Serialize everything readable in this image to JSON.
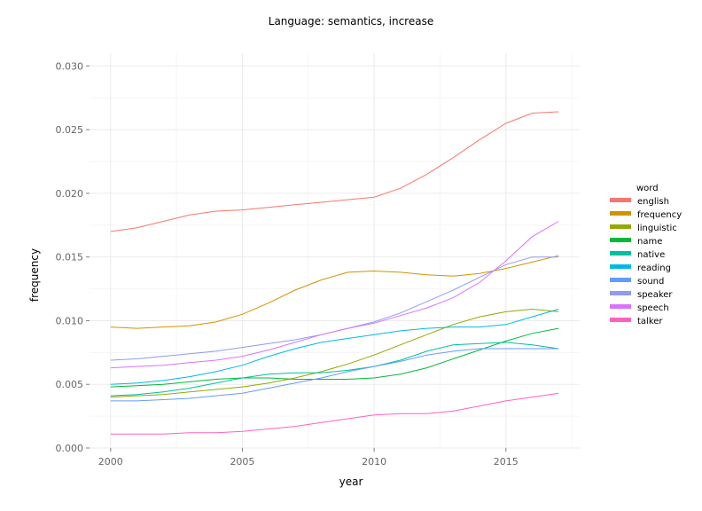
{
  "chart_data": {
    "type": "line",
    "title": "Language: semantics, increase",
    "xlabel": "year",
    "ylabel": "frequency",
    "xlim": [
      1999.2,
      2017.8
    ],
    "ylim": [
      0,
      0.031
    ],
    "xticks": [
      2000,
      2005,
      2010,
      2015
    ],
    "xtick_labels": [
      "2000",
      "2005",
      "2010",
      "2015"
    ],
    "yticks": [
      0.0,
      0.005,
      0.01,
      0.015,
      0.02,
      0.025,
      0.03
    ],
    "ytick_labels": [
      "0.000",
      "0.005",
      "0.010",
      "0.015",
      "0.020",
      "0.025",
      "0.030"
    ],
    "grid": true,
    "legend_title": "word",
    "legend_position": "right",
    "x": [
      2000,
      2001,
      2002,
      2003,
      2004,
      2005,
      2006,
      2007,
      2008,
      2009,
      2010,
      2011,
      2012,
      2013,
      2014,
      2015,
      2016,
      2017
    ],
    "series": [
      {
        "name": "english",
        "color": "#F8766D",
        "values": [
          0.017,
          0.0173,
          0.0178,
          0.0183,
          0.0186,
          0.0187,
          0.0189,
          0.0191,
          0.0193,
          0.0195,
          0.0197,
          0.0204,
          0.0215,
          0.0228,
          0.0242,
          0.0255,
          0.0263,
          0.0264
        ]
      },
      {
        "name": "frequency",
        "color": "#D39200",
        "values": [
          0.0095,
          0.0094,
          0.0095,
          0.0096,
          0.0099,
          0.0105,
          0.0114,
          0.0124,
          0.0132,
          0.0138,
          0.0139,
          0.0138,
          0.0136,
          0.0135,
          0.0137,
          0.0141,
          0.0146,
          0.0151
        ]
      },
      {
        "name": "linguistic",
        "color": "#93AA00",
        "values": [
          0.004,
          0.0041,
          0.0042,
          0.0044,
          0.0046,
          0.0048,
          0.0051,
          0.0055,
          0.006,
          0.0066,
          0.0073,
          0.0081,
          0.0089,
          0.0097,
          0.0103,
          0.0107,
          0.0109,
          0.0107
        ]
      },
      {
        "name": "name",
        "color": "#00BA38",
        "values": [
          0.0048,
          0.0049,
          0.005,
          0.0052,
          0.0054,
          0.0055,
          0.0055,
          0.0054,
          0.0054,
          0.0054,
          0.0055,
          0.0058,
          0.0063,
          0.007,
          0.0077,
          0.0084,
          0.009,
          0.0094
        ]
      },
      {
        "name": "native",
        "color": "#00C19F",
        "values": [
          0.0041,
          0.0042,
          0.0044,
          0.0047,
          0.0051,
          0.0055,
          0.0058,
          0.0059,
          0.0059,
          0.0061,
          0.0064,
          0.0069,
          0.0076,
          0.0081,
          0.0082,
          0.0083,
          0.0081,
          0.0078
        ]
      },
      {
        "name": "reading",
        "color": "#00B9E3",
        "values": [
          0.005,
          0.0051,
          0.0053,
          0.0056,
          0.006,
          0.0065,
          0.0072,
          0.0078,
          0.0083,
          0.0086,
          0.0089,
          0.0092,
          0.0094,
          0.0095,
          0.0095,
          0.0097,
          0.0103,
          0.0109
        ]
      },
      {
        "name": "sound",
        "color": "#619CFF",
        "values": [
          0.0037,
          0.0037,
          0.0038,
          0.0039,
          0.0041,
          0.0043,
          0.0047,
          0.0051,
          0.0055,
          0.006,
          0.0064,
          0.0068,
          0.0073,
          0.0076,
          0.0078,
          0.0078,
          0.0078,
          0.0078
        ]
      },
      {
        "name": "speaker",
        "color": "#8F9BF0",
        "values": [
          0.0069,
          0.007,
          0.0072,
          0.0074,
          0.0076,
          0.0079,
          0.0082,
          0.0085,
          0.0089,
          0.0094,
          0.0099,
          0.0106,
          0.0115,
          0.0124,
          0.0134,
          0.0144,
          0.015,
          0.015
        ]
      },
      {
        "name": "speech",
        "color": "#DB72FB",
        "values": [
          0.0063,
          0.0064,
          0.0065,
          0.0067,
          0.0069,
          0.0072,
          0.0077,
          0.0083,
          0.0089,
          0.0094,
          0.0098,
          0.0104,
          0.011,
          0.0118,
          0.013,
          0.0147,
          0.0166,
          0.0178
        ]
      },
      {
        "name": "talker",
        "color": "#FF61C3",
        "values": [
          0.0011,
          0.0011,
          0.0011,
          0.0012,
          0.0012,
          0.0013,
          0.0015,
          0.0017,
          0.002,
          0.0023,
          0.0026,
          0.0027,
          0.0027,
          0.0029,
          0.0033,
          0.0037,
          0.004,
          0.0043
        ]
      }
    ]
  }
}
